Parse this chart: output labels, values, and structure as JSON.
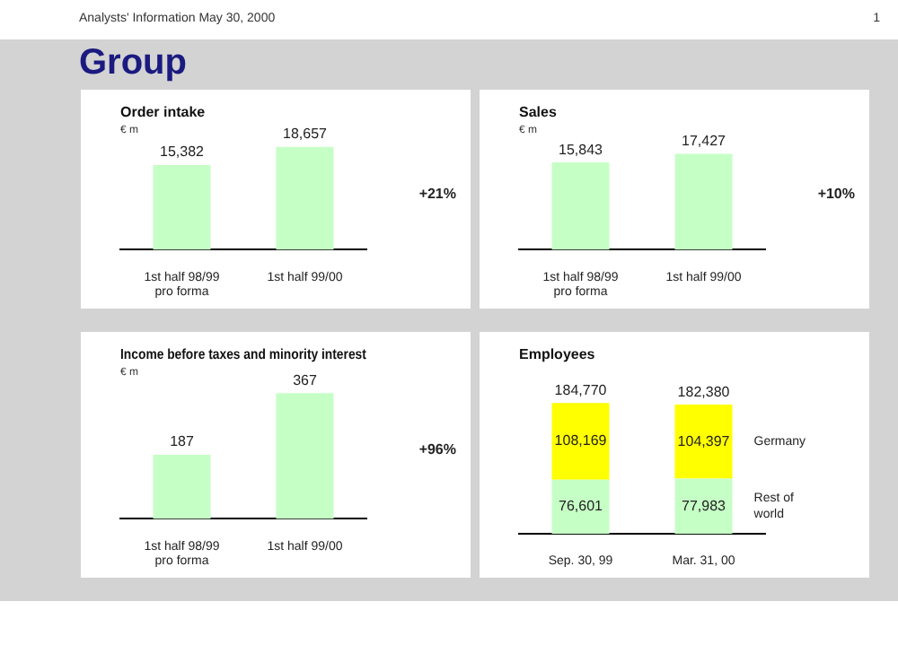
{
  "chart_data": [
    {
      "type": "other",
      "title": "Group",
      "annotations": [
        "Analysts' Information May 30, 2000",
        "1"
      ]
    },
    {
      "type": "bar",
      "title": "Order intake",
      "ylabel": "€ m",
      "categories": [
        "1st half 98/99\npro forma",
        "1st half 99/00"
      ],
      "values": [
        15382,
        18657
      ],
      "value_labels": [
        "15,382",
        "18,657"
      ],
      "color": "#c6ffc6",
      "annotations": [
        "+21%"
      ]
    },
    {
      "type": "bar",
      "title": "Sales",
      "ylabel": "€ m",
      "categories": [
        "1st half 98/99\npro forma",
        "1st half 99/00"
      ],
      "values": [
        15843,
        17427
      ],
      "value_labels": [
        "15,843",
        "17,427"
      ],
      "color": "#c6ffc6",
      "annotations": [
        "+10%"
      ]
    },
    {
      "type": "bar",
      "title": "Income before taxes and minority interest",
      "ylabel": "€ m",
      "categories": [
        "1st half 98/99\npro forma",
        "1st half 99/00"
      ],
      "values": [
        187,
        367
      ],
      "value_labels": [
        "187",
        "367"
      ],
      "color": "#c6ffc6",
      "annotations": [
        "+96%"
      ]
    },
    {
      "type": "bar",
      "title": "Employees",
      "categories": [
        "Sep. 30, 99",
        "Mar. 31, 00"
      ],
      "stacked": true,
      "totals": [
        "184,770",
        "182,380"
      ],
      "series": [
        {
          "name": "Rest of world",
          "color": "#c6ffc6",
          "values": [
            76601,
            77983
          ],
          "value_labels": [
            "76,601",
            "77,983"
          ]
        },
        {
          "name": "Germany",
          "color": "#ffff00",
          "values": [
            108169,
            104397
          ],
          "value_labels": [
            "108,169",
            "104,397"
          ]
        }
      ]
    }
  ]
}
